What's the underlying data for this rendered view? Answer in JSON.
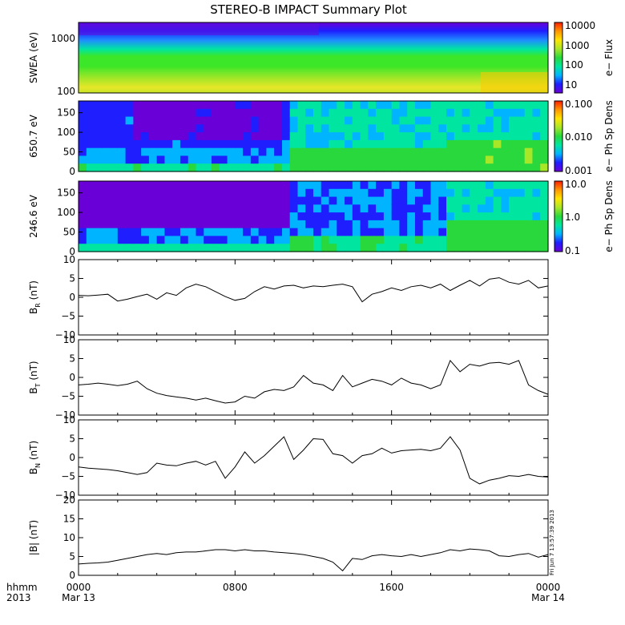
{
  "title": "STEREO-B IMPACT Summary Plot",
  "footer": {
    "row1_label": "hhmm",
    "row2_label": "2013",
    "x_ticks": [
      "0000",
      "0800",
      "1600",
      "0000"
    ],
    "dates": [
      {
        "text": "Mar 13",
        "tick": 0
      },
      {
        "text": "Mar 14",
        "tick": 3
      }
    ]
  },
  "timestamp": "Fri Jun  7 13:57:39 2013",
  "colors": {
    "colormap": [
      "#6a00d8",
      "#1e1eff",
      "#00b4ff",
      "#00e6a0",
      "#28d83c",
      "#a8e628",
      "#ffe600",
      "#ff9600",
      "#ff1e00"
    ]
  },
  "chart_data": [
    {
      "type": "heatmap",
      "name": "swea-panel",
      "ylabel": "SWEA (eV)",
      "y_ticks": [
        "1000",
        "100"
      ],
      "log_y": true,
      "colorbar": {
        "label": "e− Flux",
        "ticks": [
          "10000",
          "1000",
          "100",
          "10"
        ]
      },
      "description_bands": [
        {
          "from": 1800,
          "to": 3000,
          "level": 1,
          "note": "blue/purple top band"
        },
        {
          "from": 700,
          "to": 1000,
          "level": 2
        },
        {
          "from": 400,
          "to": 700,
          "level": 3
        },
        {
          "from": 100,
          "to": 400,
          "level": 5
        }
      ]
    },
    {
      "type": "heatmap",
      "name": "pad-650-panel",
      "ylabel": "650.7 eV",
      "ylim": [
        0,
        180
      ],
      "y_ticks": [
        "150",
        "100",
        "50",
        "0"
      ],
      "colorbar": {
        "label": "e− Ph Sp Dens",
        "ticks": [
          "0.100",
          "0.010",
          "0.001"
        ]
      }
    },
    {
      "type": "heatmap",
      "name": "pad-246-panel",
      "ylabel": "246.6 eV",
      "ylim": [
        0,
        180
      ],
      "y_ticks": [
        "150",
        "100",
        "50",
        "0"
      ],
      "colorbar": {
        "label": "e− Ph Sp Dens",
        "ticks": [
          "10.0",
          "1.0",
          "0.1"
        ]
      }
    },
    {
      "type": "line",
      "name": "br-panel",
      "ylabel": "B",
      "ylabel_sub": "R",
      "ylabel_unit": "(nT)",
      "ylim": [
        -10,
        10
      ],
      "y_ticks": [
        "10",
        "5",
        "0",
        "−5",
        "−10"
      ],
      "x_hours": [
        0,
        0.5,
        1,
        1.5,
        2,
        2.5,
        3,
        3.5,
        4,
        4.5,
        5,
        5.5,
        6,
        6.5,
        7,
        7.5,
        8,
        8.5,
        9,
        9.5,
        10,
        10.5,
        11,
        11.5,
        12,
        12.5,
        13,
        13.5,
        14,
        14.5,
        15,
        15.5,
        16,
        16.5,
        17,
        17.5,
        18,
        18.5,
        19,
        19.5,
        20,
        20.5,
        21,
        21.5,
        22,
        22.5,
        23,
        23.5,
        24
      ],
      "values": [
        0.5,
        0.4,
        0.6,
        0.8,
        -1.0,
        -0.5,
        0.2,
        0.8,
        -0.5,
        1.2,
        0.5,
        2.5,
        3.5,
        2.8,
        1.5,
        0.2,
        -0.8,
        -0.3,
        1.5,
        2.8,
        2.2,
        3.0,
        3.2,
        2.5,
        3.0,
        2.8,
        3.2,
        3.5,
        2.8,
        -1.2,
        0.8,
        1.5,
        2.5,
        1.8,
        2.8,
        3.2,
        2.5,
        3.5,
        1.8,
        3.2,
        4.5,
        3.0,
        4.8,
        5.2,
        4.0,
        3.5,
        4.5,
        2.5,
        3.0
      ]
    },
    {
      "type": "line",
      "name": "bt-panel",
      "ylabel": "B",
      "ylabel_sub": "T",
      "ylabel_unit": "(nT)",
      "ylim": [
        -10,
        10
      ],
      "y_ticks": [
        "10",
        "5",
        "0",
        "−5",
        "−10"
      ],
      "x_hours": [
        0,
        0.5,
        1,
        1.5,
        2,
        2.5,
        3,
        3.5,
        4,
        4.5,
        5,
        5.5,
        6,
        6.5,
        7,
        7.5,
        8,
        8.5,
        9,
        9.5,
        10,
        10.5,
        11,
        11.5,
        12,
        12.5,
        13,
        13.5,
        14,
        14.5,
        15,
        15.5,
        16,
        16.5,
        17,
        17.5,
        18,
        18.5,
        19,
        19.5,
        20,
        20.5,
        21,
        21.5,
        22,
        22.5,
        23,
        23.5,
        24
      ],
      "values": [
        -2.0,
        -1.8,
        -1.5,
        -1.8,
        -2.2,
        -1.8,
        -1.0,
        -3.0,
        -4.2,
        -4.8,
        -5.2,
        -5.5,
        -6.0,
        -5.5,
        -6.2,
        -6.8,
        -6.5,
        -5.0,
        -5.5,
        -3.8,
        -3.2,
        -3.5,
        -2.5,
        0.5,
        -1.5,
        -2.0,
        -3.5,
        0.5,
        -2.5,
        -1.5,
        -0.5,
        -1.0,
        -2.0,
        -0.2,
        -1.5,
        -2.0,
        -3.0,
        -2.0,
        4.5,
        1.5,
        3.5,
        3.0,
        3.8,
        4.0,
        3.5,
        4.5,
        -2.0,
        -3.5,
        -4.5
      ]
    },
    {
      "type": "line",
      "name": "bn-panel",
      "ylabel": "B",
      "ylabel_sub": "N",
      "ylabel_unit": "(nT)",
      "ylim": [
        -10,
        10
      ],
      "y_ticks": [
        "10",
        "5",
        "0",
        "−5",
        "−10"
      ],
      "x_hours": [
        0,
        0.5,
        1,
        1.5,
        2,
        2.5,
        3,
        3.5,
        4,
        4.5,
        5,
        5.5,
        6,
        6.5,
        7,
        7.5,
        8,
        8.5,
        9,
        9.5,
        10,
        10.5,
        11,
        11.5,
        12,
        12.5,
        13,
        13.5,
        14,
        14.5,
        15,
        15.5,
        16,
        16.5,
        17,
        17.5,
        18,
        18.5,
        19,
        19.5,
        20,
        20.5,
        21,
        21.5,
        22,
        22.5,
        23,
        23.5,
        24
      ],
      "values": [
        -2.5,
        -2.8,
        -3.0,
        -3.2,
        -3.5,
        -4.0,
        -4.5,
        -4.0,
        -1.5,
        -2.0,
        -2.2,
        -1.5,
        -1.0,
        -2.0,
        -1.0,
        -5.5,
        -2.5,
        1.5,
        -1.5,
        0.5,
        3.0,
        5.5,
        -0.5,
        2.0,
        5.0,
        4.8,
        1.0,
        0.5,
        -1.5,
        0.5,
        1.0,
        2.5,
        1.2,
        1.8,
        2.0,
        2.2,
        1.8,
        2.5,
        5.5,
        2.0,
        -5.5,
        -7.0,
        -6.0,
        -5.5,
        -4.8,
        -5.0,
        -4.5,
        -5.0,
        -5.2
      ]
    },
    {
      "type": "line",
      "name": "btot-panel",
      "ylabel": "|B| (nT)",
      "ylim": [
        0,
        20
      ],
      "y_ticks": [
        "20",
        "15",
        "10",
        "5",
        "0"
      ],
      "x_hours": [
        0,
        0.5,
        1,
        1.5,
        2,
        2.5,
        3,
        3.5,
        4,
        4.5,
        5,
        5.5,
        6,
        6.5,
        7,
        7.5,
        8,
        8.5,
        9,
        9.5,
        10,
        10.5,
        11,
        11.5,
        12,
        12.5,
        13,
        13.5,
        14,
        14.5,
        15,
        15.5,
        16,
        16.5,
        17,
        17.5,
        18,
        18.5,
        19,
        19.5,
        20,
        20.5,
        21,
        21.5,
        22,
        22.5,
        23,
        23.5,
        24
      ],
      "values": [
        3.0,
        3.2,
        3.3,
        3.5,
        4.0,
        4.5,
        5.0,
        5.5,
        5.8,
        5.5,
        6.0,
        6.2,
        6.2,
        6.5,
        6.8,
        6.8,
        6.5,
        6.8,
        6.5,
        6.5,
        6.2,
        6.0,
        5.8,
        5.5,
        5.0,
        4.5,
        3.5,
        1.2,
        4.5,
        4.2,
        5.2,
        5.5,
        5.2,
        5.0,
        5.5,
        5.0,
        5.5,
        6.0,
        6.8,
        6.5,
        7.0,
        6.8,
        6.5,
        5.2,
        5.0,
        5.5,
        5.8,
        4.8,
        5.5
      ]
    }
  ]
}
